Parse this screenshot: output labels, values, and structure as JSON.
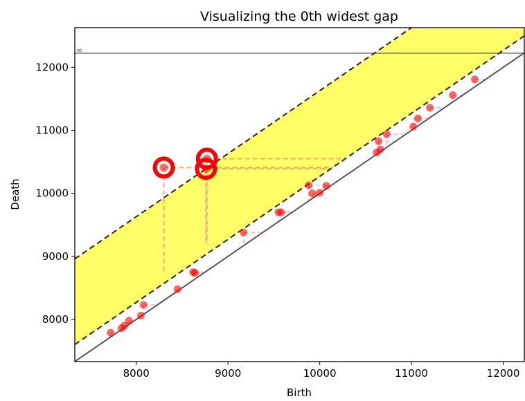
{
  "chart_data": {
    "type": "scatter",
    "title": "Visualizing the 0th widest gap",
    "xlabel": "Birth",
    "ylabel": "Death",
    "xlim": [
      7330,
      12230
    ],
    "ylim": [
      7330,
      12630
    ],
    "xticks": [
      8000,
      9000,
      10000,
      11000,
      12000
    ],
    "yticks": [
      8000,
      9000,
      10000,
      11000,
      12000
    ],
    "infinity_label": "∞",
    "infinity_y": 12225,
    "band": {
      "lower_offset": 270,
      "upper_offset": 1630,
      "fill_color": "#ffff33"
    },
    "points": [
      [
        7720,
        7790
      ],
      [
        7840,
        7860
      ],
      [
        7870,
        7900
      ],
      [
        7920,
        7980
      ],
      [
        8050,
        8060
      ],
      [
        8080,
        8230
      ],
      [
        8450,
        8480
      ],
      [
        8620,
        8750
      ],
      [
        8640,
        8740
      ],
      [
        9170,
        9380
      ],
      [
        9550,
        9700
      ],
      [
        9580,
        9700
      ],
      [
        9880,
        10130
      ],
      [
        9920,
        10000
      ],
      [
        10000,
        10010
      ],
      [
        10070,
        10120
      ],
      [
        10620,
        10650
      ],
      [
        10660,
        10700
      ],
      [
        10640,
        10830
      ],
      [
        10730,
        10940
      ],
      [
        11020,
        11060
      ],
      [
        11070,
        11190
      ],
      [
        11200,
        11360
      ],
      [
        11450,
        11560
      ],
      [
        11690,
        11810
      ]
    ],
    "highlighted": [
      [
        8300,
        10410
      ],
      [
        8760,
        10390
      ],
      [
        8770,
        10550
      ]
    ],
    "point_color": "#ff0000",
    "highlight_color": "#ff0000",
    "connector_color": "#ff9999",
    "gap_line_color": "#f0a060",
    "diagonal_color": "#555555"
  }
}
